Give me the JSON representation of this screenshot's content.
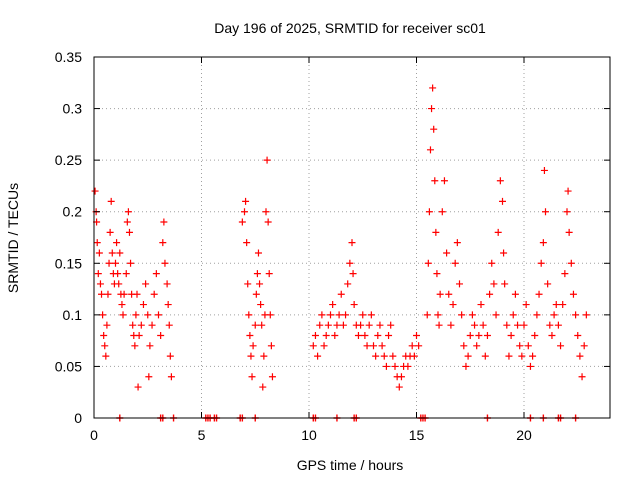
{
  "chart_data": {
    "type": "scatter",
    "title": "Day 196 of 2025, SRMTID for receiver sc01",
    "xlabel": "GPS time / hours",
    "ylabel": "SRMTID / TECUs",
    "xlim": [
      0,
      24
    ],
    "ylim": [
      0,
      0.35
    ],
    "x_ticks": [
      0,
      5,
      10,
      15,
      20
    ],
    "y_ticks": [
      0,
      0.05,
      0.1,
      0.15,
      0.2,
      0.25,
      0.3,
      0.35
    ],
    "x_tick_labels": [
      "0",
      "5",
      "10",
      "15",
      "20"
    ],
    "y_tick_labels": [
      "0",
      "0.05",
      "0.1",
      "0.15",
      "0.2",
      "0.25",
      "0.3",
      "0.35"
    ],
    "grid": true,
    "marker": "+",
    "color": "#ff0000",
    "series": [
      {
        "name": "SRMTID",
        "points": [
          [
            0.05,
            0.22
          ],
          [
            0.1,
            0.2
          ],
          [
            0.12,
            0.19
          ],
          [
            0.15,
            0.17
          ],
          [
            0.2,
            0.14
          ],
          [
            0.25,
            0.16
          ],
          [
            0.3,
            0.13
          ],
          [
            0.35,
            0.12
          ],
          [
            0.4,
            0.1
          ],
          [
            0.45,
            0.08
          ],
          [
            0.5,
            0.07
          ],
          [
            0.55,
            0.06
          ],
          [
            0.6,
            0.09
          ],
          [
            0.65,
            0.12
          ],
          [
            0.7,
            0.15
          ],
          [
            0.75,
            0.18
          ],
          [
            0.8,
            0.21
          ],
          [
            0.85,
            0.16
          ],
          [
            0.9,
            0.14
          ],
          [
            0.95,
            0.13
          ],
          [
            1.0,
            0.15
          ],
          [
            1.05,
            0.17
          ],
          [
            1.1,
            0.14
          ],
          [
            1.15,
            0.13
          ],
          [
            1.2,
            0.16
          ],
          [
            1.25,
            0.12
          ],
          [
            1.3,
            0.11
          ],
          [
            1.35,
            0.1
          ],
          [
            1.4,
            0.12
          ],
          [
            1.5,
            0.14
          ],
          [
            1.55,
            0.19
          ],
          [
            1.6,
            0.2
          ],
          [
            1.65,
            0.18
          ],
          [
            1.7,
            0.15
          ],
          [
            1.75,
            0.12
          ],
          [
            1.8,
            0.09
          ],
          [
            1.85,
            0.08
          ],
          [
            1.9,
            0.07
          ],
          [
            1.95,
            0.1
          ],
          [
            2.0,
            0.12
          ],
          [
            2.05,
            0.03
          ],
          [
            2.1,
            0.08
          ],
          [
            2.2,
            0.09
          ],
          [
            2.3,
            0.11
          ],
          [
            2.4,
            0.13
          ],
          [
            2.5,
            0.1
          ],
          [
            2.55,
            0.04
          ],
          [
            2.6,
            0.07
          ],
          [
            2.7,
            0.09
          ],
          [
            2.8,
            0.12
          ],
          [
            2.9,
            0.14
          ],
          [
            3.0,
            0.1
          ],
          [
            3.1,
            0.08
          ],
          [
            3.2,
            0.17
          ],
          [
            3.25,
            0.19
          ],
          [
            3.3,
            0.15
          ],
          [
            3.4,
            0.13
          ],
          [
            3.45,
            0.11
          ],
          [
            3.5,
            0.09
          ],
          [
            3.55,
            0.06
          ],
          [
            3.6,
            0.04
          ],
          [
            6.9,
            0.19
          ],
          [
            7.0,
            0.2
          ],
          [
            7.05,
            0.21
          ],
          [
            7.1,
            0.17
          ],
          [
            7.15,
            0.13
          ],
          [
            7.2,
            0.1
          ],
          [
            7.25,
            0.08
          ],
          [
            7.3,
            0.06
          ],
          [
            7.35,
            0.04
          ],
          [
            7.4,
            0.07
          ],
          [
            7.5,
            0.09
          ],
          [
            7.55,
            0.12
          ],
          [
            7.6,
            0.14
          ],
          [
            7.65,
            0.16
          ],
          [
            7.7,
            0.13
          ],
          [
            7.75,
            0.11
          ],
          [
            7.8,
            0.09
          ],
          [
            7.85,
            0.03
          ],
          [
            7.9,
            0.06
          ],
          [
            7.95,
            0.1
          ],
          [
            8.0,
            0.2
          ],
          [
            8.05,
            0.25
          ],
          [
            8.1,
            0.19
          ],
          [
            8.15,
            0.14
          ],
          [
            8.2,
            0.1
          ],
          [
            8.25,
            0.07
          ],
          [
            8.3,
            0.04
          ],
          [
            10.2,
            0.07
          ],
          [
            10.3,
            0.08
          ],
          [
            10.4,
            0.06
          ],
          [
            10.5,
            0.09
          ],
          [
            10.6,
            0.1
          ],
          [
            10.7,
            0.07
          ],
          [
            10.8,
            0.08
          ],
          [
            10.9,
            0.09
          ],
          [
            11.0,
            0.1
          ],
          [
            11.1,
            0.11
          ],
          [
            11.2,
            0.08
          ],
          [
            11.3,
            0.09
          ],
          [
            11.4,
            0.1
          ],
          [
            11.5,
            0.12
          ],
          [
            11.6,
            0.09
          ],
          [
            11.7,
            0.1
          ],
          [
            11.8,
            0.13
          ],
          [
            11.9,
            0.15
          ],
          [
            12.0,
            0.17
          ],
          [
            12.05,
            0.14
          ],
          [
            12.1,
            0.11
          ],
          [
            12.2,
            0.09
          ],
          [
            12.3,
            0.08
          ],
          [
            12.4,
            0.09
          ],
          [
            12.5,
            0.1
          ],
          [
            12.6,
            0.08
          ],
          [
            12.7,
            0.07
          ],
          [
            12.8,
            0.09
          ],
          [
            12.9,
            0.1
          ],
          [
            13.0,
            0.07
          ],
          [
            13.1,
            0.06
          ],
          [
            13.2,
            0.08
          ],
          [
            13.3,
            0.09
          ],
          [
            13.4,
            0.07
          ],
          [
            13.5,
            0.06
          ],
          [
            13.6,
            0.05
          ],
          [
            13.7,
            0.08
          ],
          [
            13.8,
            0.09
          ],
          [
            13.9,
            0.06
          ],
          [
            14.0,
            0.05
          ],
          [
            14.1,
            0.04
          ],
          [
            14.2,
            0.03
          ],
          [
            14.3,
            0.04
          ],
          [
            14.4,
            0.05
          ],
          [
            14.5,
            0.06
          ],
          [
            14.6,
            0.05
          ],
          [
            14.7,
            0.06
          ],
          [
            14.8,
            0.07
          ],
          [
            14.9,
            0.06
          ],
          [
            15.0,
            0.08
          ],
          [
            15.1,
            0.07
          ],
          [
            15.5,
            0.1
          ],
          [
            15.55,
            0.15
          ],
          [
            15.6,
            0.2
          ],
          [
            15.65,
            0.26
          ],
          [
            15.7,
            0.3
          ],
          [
            15.75,
            0.32
          ],
          [
            15.8,
            0.28
          ],
          [
            15.85,
            0.23
          ],
          [
            15.9,
            0.18
          ],
          [
            15.95,
            0.14
          ],
          [
            16.0,
            0.1
          ],
          [
            16.05,
            0.09
          ],
          [
            16.1,
            0.12
          ],
          [
            16.2,
            0.2
          ],
          [
            16.3,
            0.23
          ],
          [
            16.4,
            0.16
          ],
          [
            16.5,
            0.12
          ],
          [
            16.6,
            0.09
          ],
          [
            16.7,
            0.11
          ],
          [
            16.8,
            0.15
          ],
          [
            16.9,
            0.17
          ],
          [
            17.0,
            0.13
          ],
          [
            17.1,
            0.1
          ],
          [
            17.2,
            0.07
          ],
          [
            17.3,
            0.05
          ],
          [
            17.4,
            0.06
          ],
          [
            17.5,
            0.08
          ],
          [
            17.6,
            0.1
          ],
          [
            17.7,
            0.09
          ],
          [
            17.8,
            0.07
          ],
          [
            17.9,
            0.08
          ],
          [
            18.0,
            0.11
          ],
          [
            18.1,
            0.09
          ],
          [
            18.2,
            0.06
          ],
          [
            18.3,
            0.08
          ],
          [
            18.4,
            0.12
          ],
          [
            18.5,
            0.15
          ],
          [
            18.6,
            0.13
          ],
          [
            18.7,
            0.1
          ],
          [
            18.8,
            0.18
          ],
          [
            18.9,
            0.23
          ],
          [
            19.0,
            0.21
          ],
          [
            19.05,
            0.16
          ],
          [
            19.1,
            0.13
          ],
          [
            19.2,
            0.09
          ],
          [
            19.3,
            0.06
          ],
          [
            19.4,
            0.08
          ],
          [
            19.5,
            0.1
          ],
          [
            19.6,
            0.12
          ],
          [
            19.7,
            0.09
          ],
          [
            19.8,
            0.07
          ],
          [
            19.9,
            0.06
          ],
          [
            20.0,
            0.09
          ],
          [
            20.1,
            0.11
          ],
          [
            20.2,
            0.07
          ],
          [
            20.3,
            0.05
          ],
          [
            20.4,
            0.06
          ],
          [
            20.5,
            0.08
          ],
          [
            20.6,
            0.1
          ],
          [
            20.7,
            0.12
          ],
          [
            20.8,
            0.15
          ],
          [
            20.9,
            0.17
          ],
          [
            20.95,
            0.24
          ],
          [
            21.0,
            0.2
          ],
          [
            21.1,
            0.13
          ],
          [
            21.2,
            0.09
          ],
          [
            21.3,
            0.08
          ],
          [
            21.4,
            0.1
          ],
          [
            21.5,
            0.11
          ],
          [
            21.6,
            0.09
          ],
          [
            21.7,
            0.07
          ],
          [
            21.8,
            0.11
          ],
          [
            21.9,
            0.14
          ],
          [
            22.0,
            0.2
          ],
          [
            22.05,
            0.22
          ],
          [
            22.1,
            0.18
          ],
          [
            22.2,
            0.15
          ],
          [
            22.3,
            0.12
          ],
          [
            22.4,
            0.1
          ],
          [
            22.5,
            0.08
          ],
          [
            22.6,
            0.06
          ],
          [
            22.7,
            0.04
          ],
          [
            22.8,
            0.07
          ],
          [
            22.9,
            0.1
          ]
        ]
      }
    ],
    "zero_markers_x": [
      1.2,
      3.1,
      3.2,
      3.7,
      5.2,
      5.3,
      5.4,
      5.6,
      5.7,
      6.8,
      6.9,
      7.5,
      10.2,
      10.3,
      11.3,
      12.1,
      12.2,
      15.2,
      15.3,
      15.4,
      18.3,
      20.3,
      20.9,
      21.6,
      21.7,
      22.4
    ]
  }
}
